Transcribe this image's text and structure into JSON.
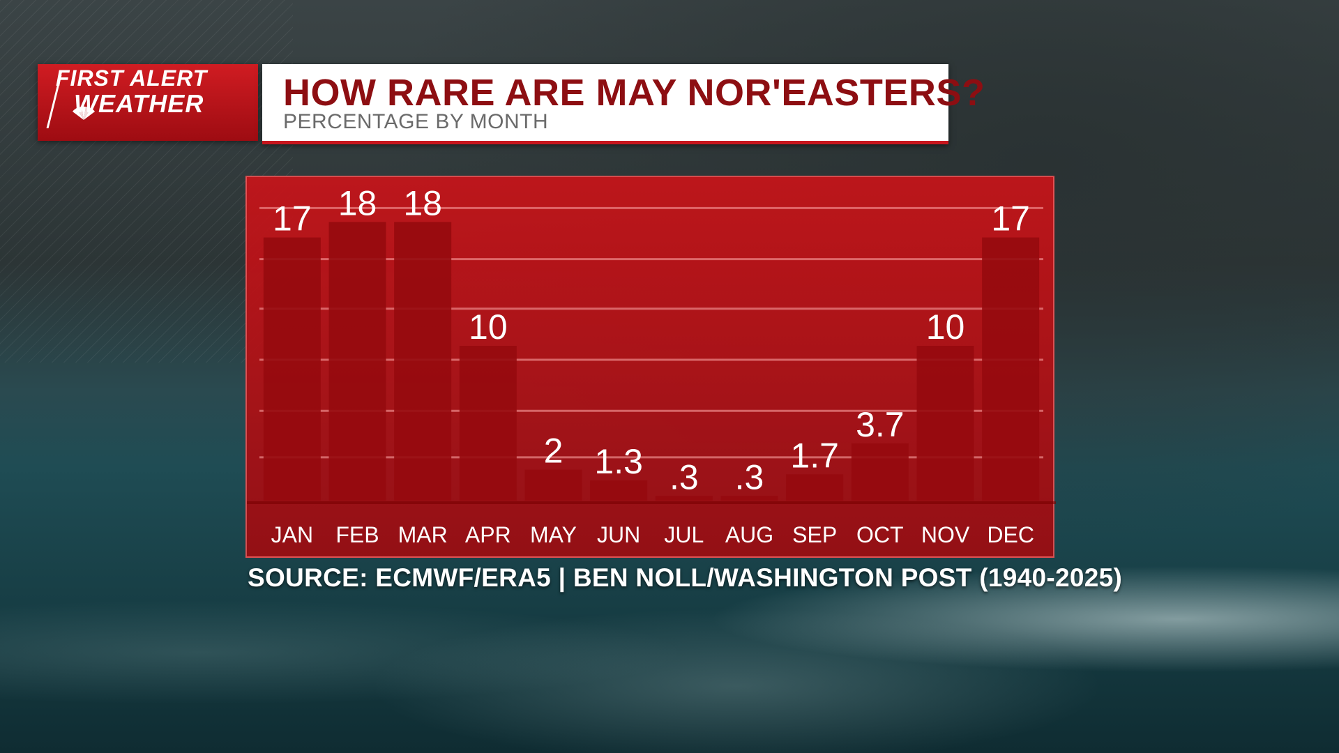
{
  "header": {
    "logo_line1": "FIRST ALERT",
    "logo_line2": "WEATHER",
    "title": "HOW RARE ARE MAY NOR'EASTERS?",
    "subtitle": "PERCENTAGE BY MONTH"
  },
  "source": "SOURCE: ECMWF/ERA5 | BEN NOLL/WASHINGTON POST (1940-2025)",
  "colors": {
    "brand_red": "#c8161d",
    "title_red": "#8d0e12",
    "bar": "#960a0e",
    "label": "#ffffff"
  },
  "chart_data": {
    "type": "bar",
    "title": "HOW RARE ARE MAY NOR'EASTERS?",
    "subtitle": "PERCENTAGE BY MONTH",
    "categories": [
      "JAN",
      "FEB",
      "MAR",
      "APR",
      "MAY",
      "JUN",
      "JUL",
      "AUG",
      "SEP",
      "OCT",
      "NOV",
      "DEC"
    ],
    "values": [
      17,
      18,
      18,
      10,
      2,
      1.3,
      0.3,
      0.3,
      1.7,
      3.7,
      10,
      17
    ],
    "value_labels": [
      "17",
      "18",
      "18",
      "10",
      "2",
      "1.3",
      ".3",
      ".3",
      "1.7",
      "3.7",
      "10",
      "17"
    ],
    "ylim": [
      0,
      20
    ],
    "grid": true,
    "xlabel": "",
    "ylabel": ""
  }
}
